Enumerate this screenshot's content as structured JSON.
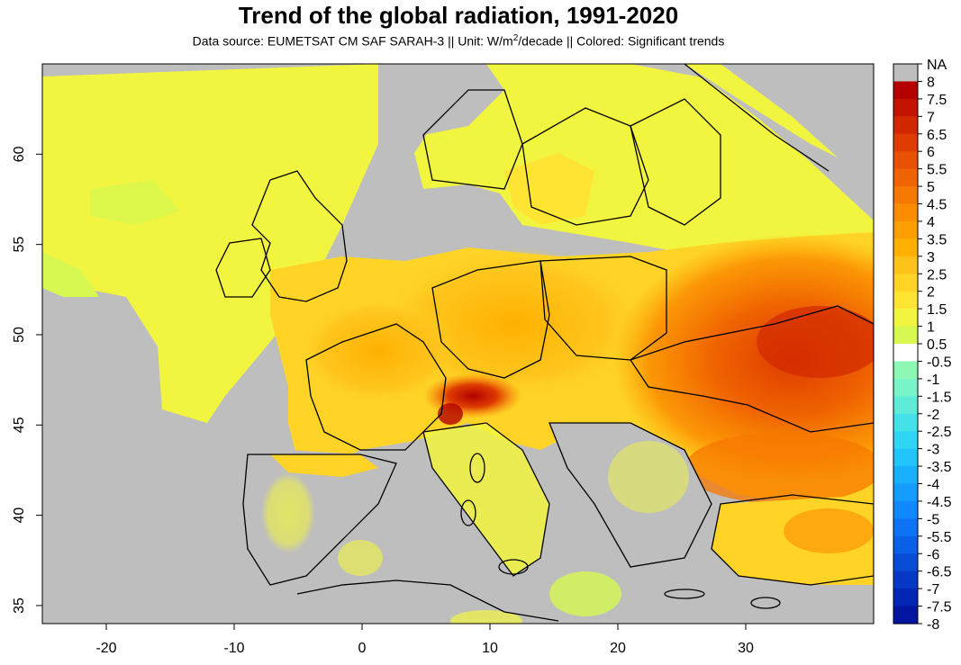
{
  "title": "Trend of the global radiation, 1991-2020",
  "subtitle": {
    "prefix": "Data source: EUMETSAT CM SAF SARAH-3 || Unit: W/m",
    "sup": "2",
    "suffix": "/decade || Colored: Significant trends"
  },
  "axes": {
    "x_ticks": [
      "-20",
      "-10",
      "0",
      "10",
      "20",
      "30"
    ],
    "x_values": [
      -20,
      -10,
      0,
      10,
      20,
      30
    ],
    "y_ticks": [
      "35",
      "40",
      "45",
      "50",
      "55",
      "60"
    ],
    "y_values": [
      35,
      40,
      45,
      50,
      55,
      60
    ],
    "lon_range": [
      -25,
      40
    ],
    "lat_range": [
      34,
      65
    ]
  },
  "colorbar": {
    "labels": [
      "NA",
      "8",
      "7.5",
      "7",
      "6.5",
      "6",
      "5.5",
      "5",
      "4.5",
      "4",
      "3.5",
      "3",
      "2.5",
      "2",
      "1.5",
      "1",
      "0.5",
      "-0.5",
      "-1",
      "-1.5",
      "-2",
      "-2.5",
      "-3",
      "-3.5",
      "-4",
      "-4.5",
      "-5",
      "-5.5",
      "-6",
      "-6.5",
      "-7",
      "-7.5",
      "-8"
    ],
    "na_color": "#bebebe",
    "positive_colors": [
      "#b40000",
      "#c41400",
      "#d22800",
      "#de3c00",
      "#e85200",
      "#f06400",
      "#f77800",
      "#fb8c00",
      "#fe9e00",
      "#ffb000",
      "#ffc21a",
      "#ffd426",
      "#ffe433",
      "#f2f540",
      "#d6f850",
      "#bcf865"
    ],
    "zero_color": "#ffffff",
    "negative_colors": [
      "#8cf8b4",
      "#78f4c8",
      "#5eecd8",
      "#44e2e8",
      "#30d4f4",
      "#22c4fc",
      "#18b0ff",
      "#149cff",
      "#1088ff",
      "#0c74f4",
      "#0a60e6",
      "#084cd6",
      "#0638c6",
      "#0426b4",
      "#0214a0",
      "#00008c"
    ]
  },
  "map": {
    "ocean_color": "#bebebe",
    "land_color": "#f2f540",
    "border_color": "#000000"
  }
}
